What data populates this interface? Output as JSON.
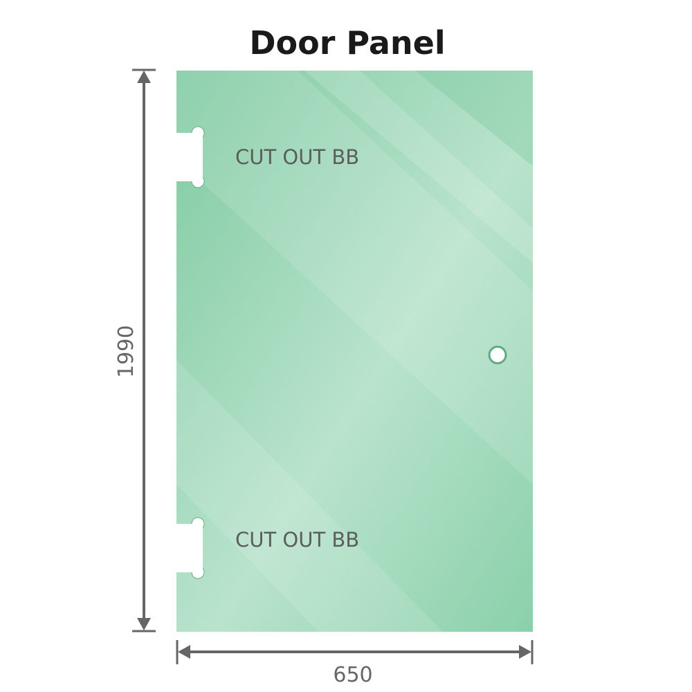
{
  "title": "Door Panel",
  "panel": {
    "color": "#86cfa9",
    "cutouts": [
      {
        "label": "CUT OUT BB"
      },
      {
        "label": "CUT OUT BB"
      }
    ],
    "handle_hole": "circle"
  },
  "dimensions": {
    "height": "1990",
    "width": "650",
    "line_color": "#666666"
  }
}
